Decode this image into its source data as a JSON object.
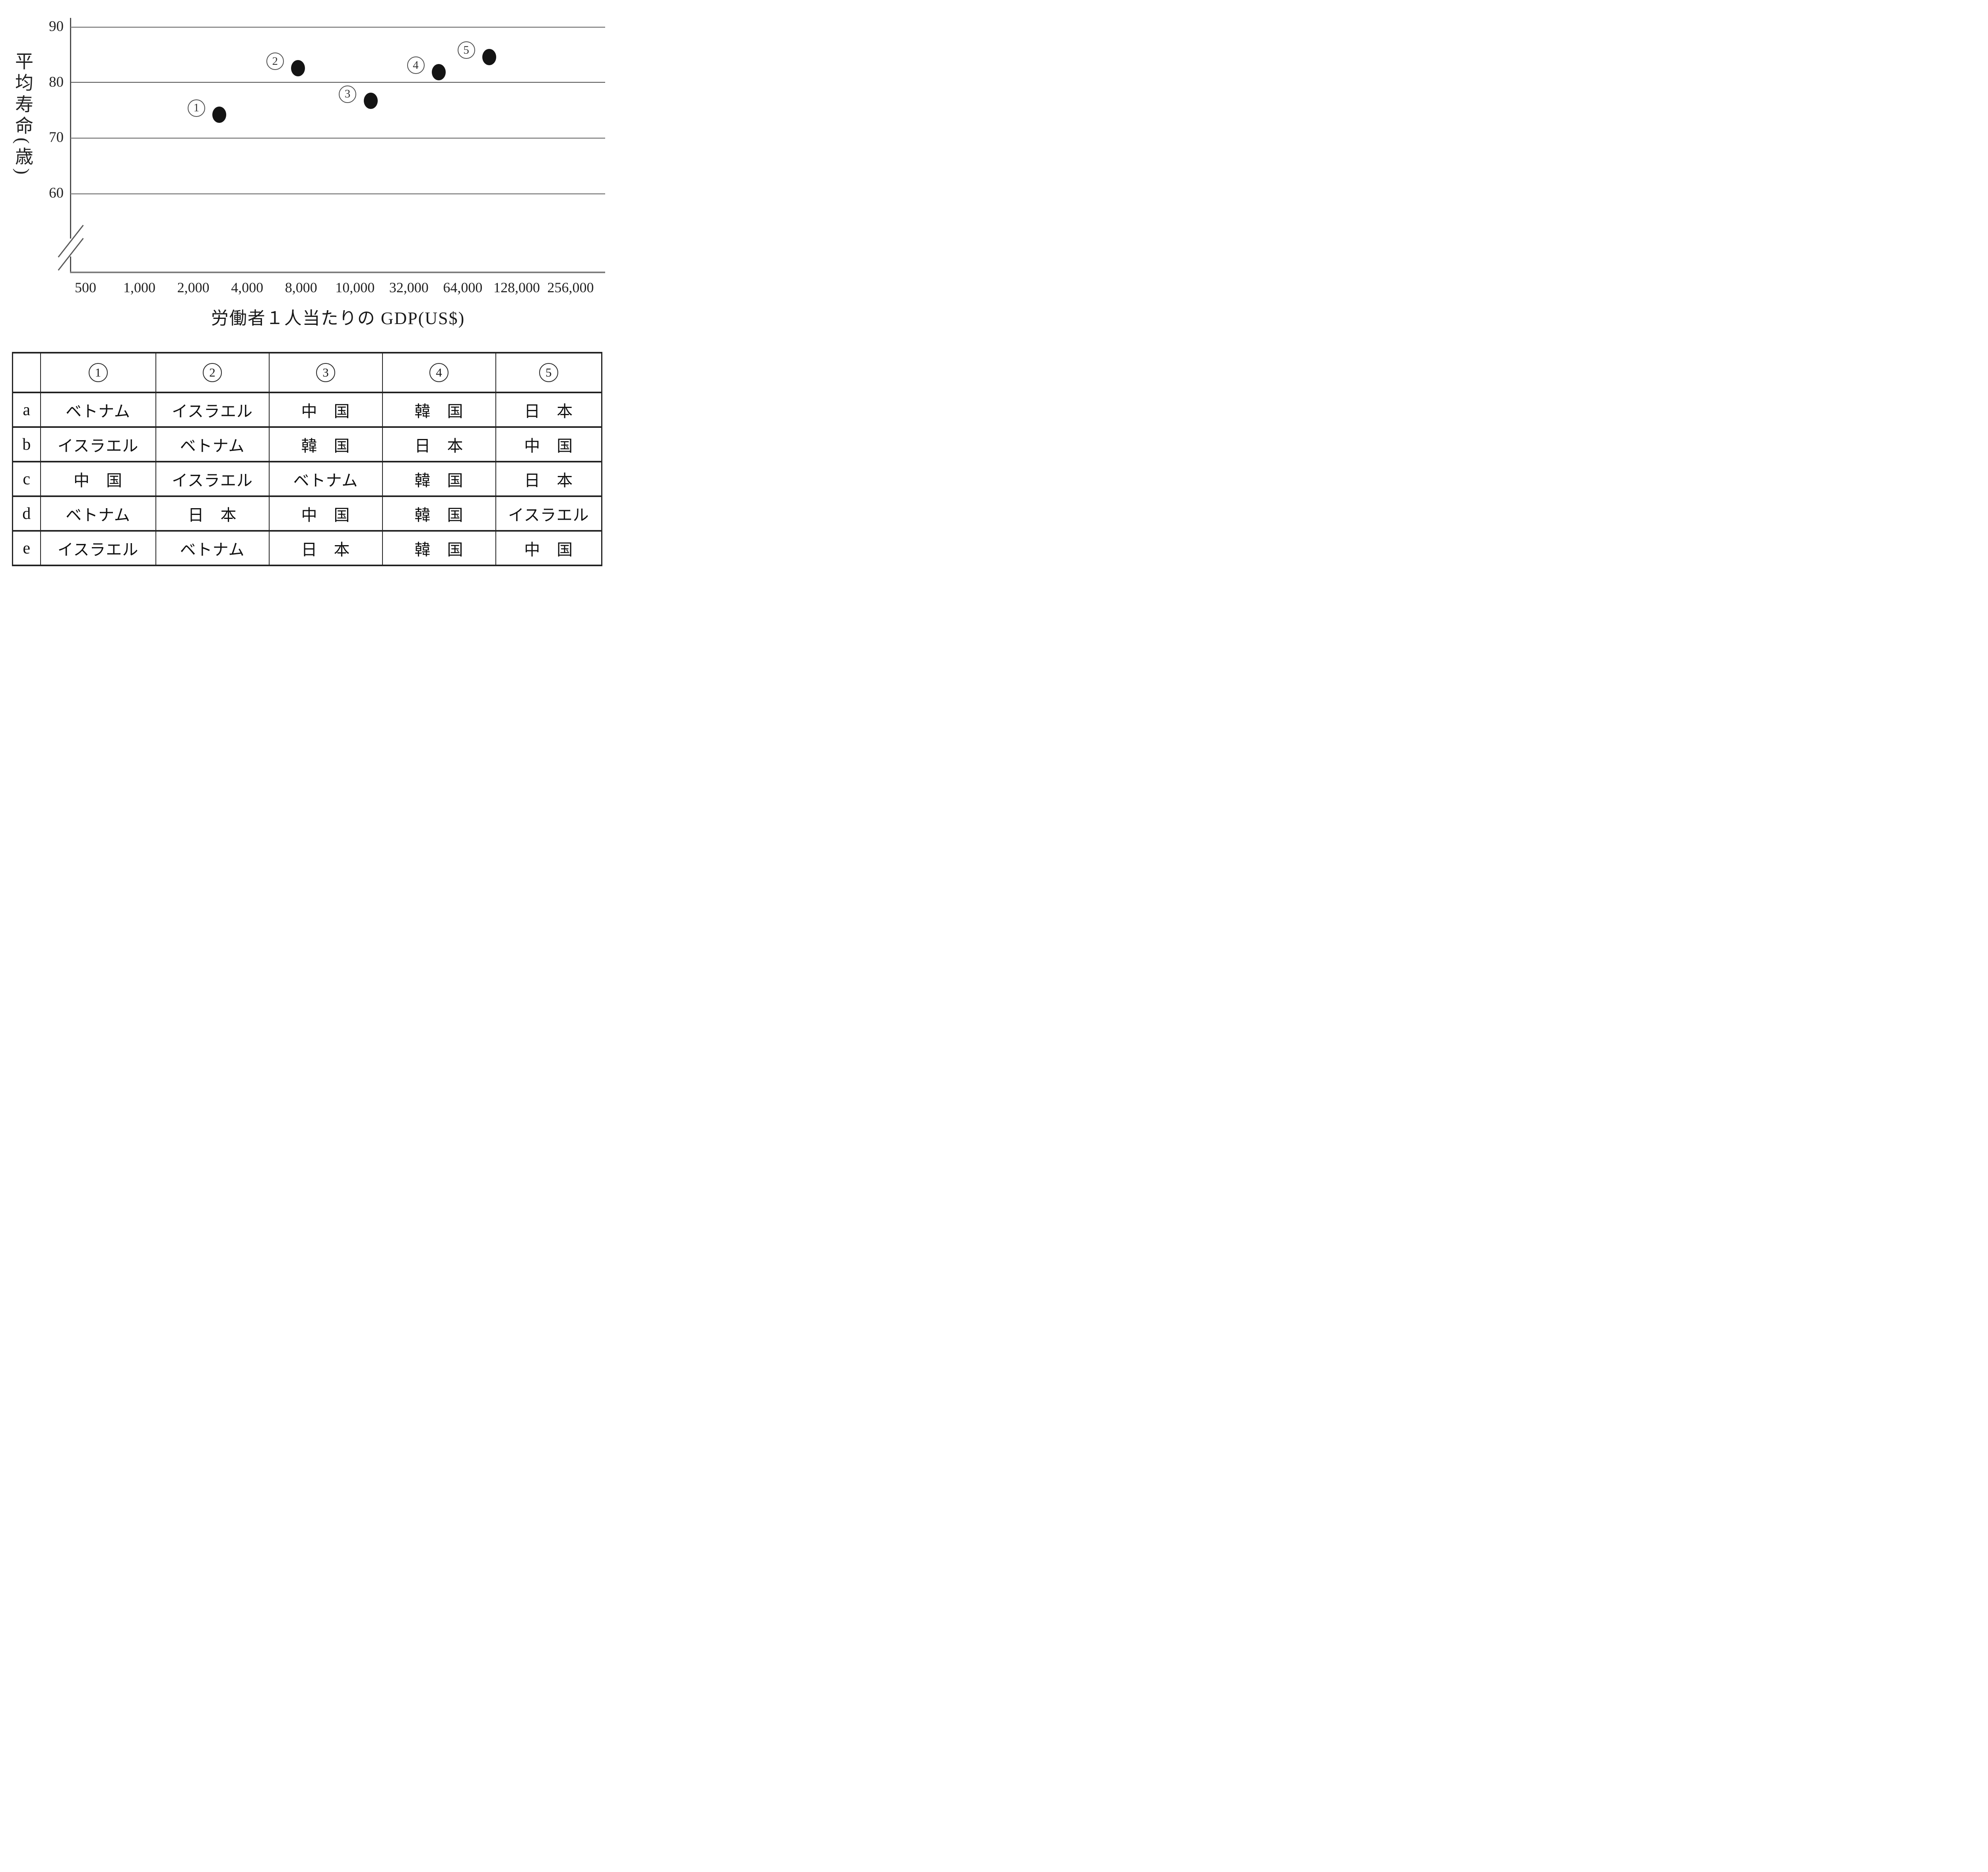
{
  "chart_data": {
    "type": "scatter",
    "title": "",
    "xlabel": "労働者１人当たりの GDP(US$)",
    "ylabel": "平均寿命(歳)",
    "x_scale": "logarithmic-style, evenly spaced labeled ticks",
    "x_tick_labels": [
      "500",
      "1,000",
      "2,000",
      "4,000",
      "8,000",
      "10,000",
      "32,000",
      "64,000",
      "128,000",
      "256,000"
    ],
    "x_tick_values": [
      500,
      1000,
      2000,
      4000,
      8000,
      10000,
      32000,
      64000,
      128000,
      256000
    ],
    "y_ticks": [
      90,
      80,
      70,
      60
    ],
    "y_range_shown": [
      60,
      90
    ],
    "y_axis_break": true,
    "grid": "horizontal gridlines at 60,70,80,90",
    "legend": "none",
    "points": [
      {
        "label": "1",
        "x": 2800,
        "y": 74.2
      },
      {
        "label": "2",
        "x": 7700,
        "y": 82.6
      },
      {
        "label": "3",
        "x": 14000,
        "y": 76.7
      },
      {
        "label": "4",
        "x": 47000,
        "y": 81.9
      },
      {
        "label": "5",
        "x": 90000,
        "y": 84.6
      }
    ]
  },
  "table": {
    "corner_label": "",
    "column_headers": [
      "1",
      "2",
      "3",
      "4",
      "5"
    ],
    "rows": [
      {
        "label": "a",
        "cells": [
          "ベトナム",
          "イスラエル",
          "中　国",
          "韓　国",
          "日　本"
        ]
      },
      {
        "label": "b",
        "cells": [
          "イスラエル",
          "ベトナム",
          "韓　国",
          "日　本",
          "中　国"
        ]
      },
      {
        "label": "c",
        "cells": [
          "中　国",
          "イスラエル",
          "ベトナム",
          "韓　国",
          "日　本"
        ]
      },
      {
        "label": "d",
        "cells": [
          "ベトナム",
          "日　本",
          "中　国",
          "韓　国",
          "イスラエル"
        ]
      },
      {
        "label": "e",
        "cells": [
          "イスラエル",
          "ベトナム",
          "日　本",
          "韓　国",
          "中　国"
        ]
      }
    ]
  }
}
